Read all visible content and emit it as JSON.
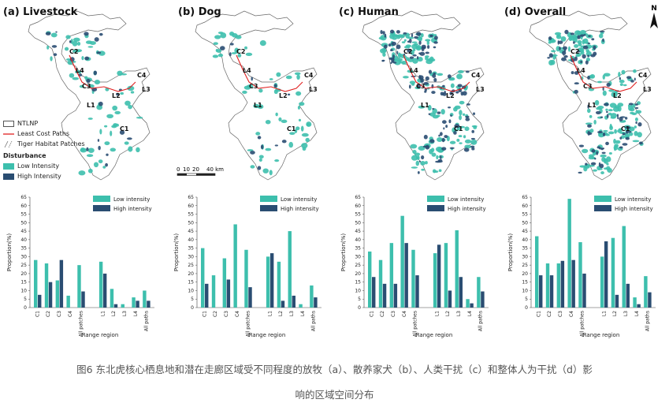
{
  "colors": {
    "low": "#3dbfad",
    "high": "#2a4d72",
    "path": "#e02020",
    "outline": "#666666"
  },
  "map_panels": [
    {
      "title": "(a) Livestock"
    },
    {
      "title": "(b) Dog"
    },
    {
      "title": "(c) Human"
    },
    {
      "title": "(d) Overall"
    }
  ],
  "map_labels": [
    "C2",
    "L4",
    "C3",
    "L1",
    "L2",
    "C4",
    "L3",
    "C1"
  ],
  "map_legend": {
    "ntlnp": "NTLNP",
    "paths": "Least Cost Paths",
    "habitat": "Tiger Habitat Patches",
    "disturbance": "Disturbance",
    "low": "Low Intensity",
    "high": "High Intensity"
  },
  "scalebar": {
    "ticks": [
      "0",
      "10",
      "20",
      "40 km"
    ]
  },
  "north_label": "N",
  "chart_data": [
    {
      "type": "bar",
      "categories": [
        "C1",
        "C2",
        "C3",
        "C4",
        "All patches",
        "L1",
        "L2",
        "L3",
        "L4",
        "All paths"
      ],
      "series": [
        {
          "name": "Low intensity",
          "values": [
            28,
            26,
            16,
            7,
            25,
            27,
            11,
            2,
            6,
            10
          ]
        },
        {
          "name": "High intensity",
          "values": [
            7.5,
            15,
            28,
            0,
            9.5,
            20,
            2,
            0,
            4,
            4
          ]
        }
      ],
      "xlabel": "Range region",
      "ylabel": "Proportion(%)",
      "ylim": [
        0,
        65
      ],
      "yticks": [
        0,
        5,
        10,
        15,
        20,
        25,
        30,
        35,
        40,
        45,
        50,
        55,
        60,
        65
      ]
    },
    {
      "type": "bar",
      "categories": [
        "C1",
        "C2",
        "C3",
        "C4",
        "All patches",
        "L1",
        "L2",
        "L3",
        "L4",
        "All paths"
      ],
      "series": [
        {
          "name": "Low intensity",
          "values": [
            35,
            19,
            29,
            49,
            34,
            30,
            27,
            45,
            2,
            13
          ]
        },
        {
          "name": "High intensity",
          "values": [
            14,
            0,
            16.5,
            0,
            12,
            32,
            4,
            7,
            0,
            6
          ]
        }
      ],
      "xlabel": "Range region",
      "ylabel": "Proportion(%)",
      "ylim": [
        0,
        65
      ],
      "yticks": [
        0,
        5,
        10,
        15,
        20,
        25,
        30,
        35,
        40,
        45,
        50,
        55,
        60,
        65
      ]
    },
    {
      "type": "bar",
      "categories": [
        "C1",
        "C2",
        "C3",
        "C4",
        "All patches",
        "L1",
        "L2",
        "L3",
        "L4",
        "All paths"
      ],
      "series": [
        {
          "name": "Low intensity",
          "values": [
            33,
            28,
            38,
            54,
            34,
            32,
            38,
            45.5,
            5,
            18
          ]
        },
        {
          "name": "High intensity",
          "values": [
            18,
            14,
            14,
            38,
            19,
            37,
            10,
            18,
            2.5,
            9.5
          ]
        }
      ],
      "xlabel": "Range region",
      "ylabel": "Proportion(%)",
      "ylim": [
        0,
        65
      ],
      "yticks": [
        0,
        5,
        10,
        15,
        20,
        25,
        30,
        35,
        40,
        45,
        50,
        55,
        60,
        65
      ]
    },
    {
      "type": "bar",
      "categories": [
        "C1",
        "C2",
        "C3",
        "C4",
        "All patches",
        "L1",
        "L2",
        "L3",
        "L4",
        "All paths"
      ],
      "series": [
        {
          "name": "Low intensity",
          "values": [
            42,
            26,
            26,
            64,
            38.5,
            30,
            41,
            48,
            6,
            18.5
          ]
        },
        {
          "name": "High intensity",
          "values": [
            19,
            19,
            27.5,
            28,
            20,
            39,
            7.5,
            14,
            2,
            9
          ]
        }
      ],
      "xlabel": "Range region",
      "ylabel": "Proportion(%)",
      "ylim": [
        0,
        65
      ],
      "yticks": [
        0,
        5,
        10,
        15,
        20,
        25,
        30,
        35,
        40,
        45,
        50,
        55,
        60,
        65
      ]
    }
  ],
  "caption": {
    "line1": "图6 东北虎核心栖息地和潜在走廊区域受不同程度的放牧（a）、散养家犬（b）、人类干扰（c）和整体人为干扰（d）影",
    "line2": "响的区域空间分布"
  }
}
